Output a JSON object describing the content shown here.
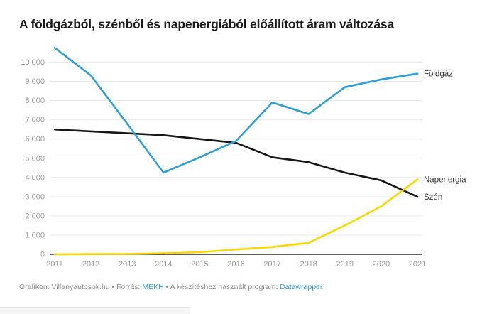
{
  "title": "A földgázból, szénből és napenergiából előállított áram változása",
  "footer": {
    "prefix": "Grafikon: Villanyautosok.hu • Forrás: ",
    "source_link": "MEKH",
    "middle": " • A készítéshez használt program: ",
    "tool_link": "Datawrapper"
  },
  "chart_data": {
    "type": "line",
    "title": "A földgázból, szénből és napenergiából előállított áram változása",
    "categories": [
      "2011",
      "2012",
      "2013",
      "2014",
      "2015",
      "2016",
      "2017",
      "2018",
      "2019",
      "2020",
      "2021"
    ],
    "series": [
      {
        "id": "szen",
        "name": "Szén",
        "color": "#161616",
        "values": [
          6500,
          6400,
          6300,
          6200,
          6000,
          5800,
          5050,
          4800,
          4250,
          3850,
          3000
        ]
      },
      {
        "id": "napenergia",
        "name": "Napenergia",
        "color": "#fcd603",
        "values": [
          5,
          10,
          20,
          50,
          110,
          250,
          380,
          600,
          1500,
          2500,
          3900
        ]
      },
      {
        "id": "foldgaz",
        "name": "Földgáz",
        "color": "#2e9fd6",
        "values": [
          10750,
          9300,
          6800,
          4250,
          5050,
          5900,
          7900,
          7300,
          8700,
          9100,
          9400
        ]
      }
    ],
    "ylim": [
      0,
      10800
    ],
    "yticks": [
      0,
      1000,
      2000,
      3000,
      4000,
      5000,
      6000,
      7000,
      8000,
      9000,
      10000
    ],
    "ytick_labels": [
      "0",
      "1 000",
      "2 000",
      "3 000",
      "4 000",
      "5 000",
      "6 000",
      "7 000",
      "8 000",
      "9 000",
      "10 000"
    ],
    "xlabel": "",
    "ylabel": "",
    "grid": "horizontal",
    "legend_position": "right-end-labels",
    "axis_text_color": "#9b9b9b",
    "grid_color": "#e9e9e9",
    "baseline_color": "#262626",
    "label_text_color": "#3a3a3a"
  }
}
